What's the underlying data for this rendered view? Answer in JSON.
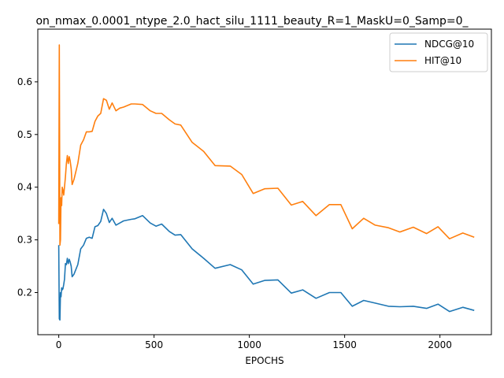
{
  "figure": {
    "title": "on_nmax_0.0001_ntype_2.0_hact_silu_1111_beauty_R=1_MaskU=0_Samp=0_"
  },
  "chart_data": {
    "type": "line",
    "title": "on_nmax_0.0001_ntype_2.0_hact_silu_1111_beauty_R=1_MaskU=0_Samp=0_",
    "xlabel": "EPOCHS",
    "ylabel": "",
    "xlim": [
      -110,
      2270
    ],
    "ylim": [
      0.12,
      0.7
    ],
    "xticks": [
      0,
      500,
      1000,
      1500,
      2000
    ],
    "yticks": [
      0.2,
      0.3,
      0.4,
      0.5,
      0.6
    ],
    "grid": false,
    "legend_position": "top-right",
    "series": [
      {
        "name": "NDCG@10",
        "color": "#1f77b4",
        "x": [
          0,
          3,
          6,
          9,
          12,
          15,
          18,
          22,
          26,
          30,
          35,
          40,
          45,
          50,
          55,
          60,
          65,
          70,
          80,
          100,
          115,
          130,
          145,
          160,
          175,
          190,
          205,
          220,
          235,
          250,
          265,
          280,
          300,
          320,
          340,
          380,
          400,
          440,
          480,
          510,
          540,
          580,
          610,
          640,
          700,
          760,
          820,
          900,
          960,
          1020,
          1080,
          1150,
          1220,
          1280,
          1350,
          1420,
          1480,
          1540,
          1600,
          1660,
          1730,
          1790,
          1860,
          1930,
          1990,
          2050,
          2120,
          2180
        ],
        "y": [
          0.29,
          0.15,
          0.148,
          0.2,
          0.192,
          0.209,
          0.205,
          0.207,
          0.215,
          0.225,
          0.255,
          0.253,
          0.265,
          0.255,
          0.263,
          0.258,
          0.25,
          0.23,
          0.235,
          0.253,
          0.283,
          0.29,
          0.303,
          0.305,
          0.303,
          0.325,
          0.327,
          0.335,
          0.358,
          0.35,
          0.333,
          0.341,
          0.328,
          0.332,
          0.336,
          0.339,
          0.34,
          0.346,
          0.332,
          0.326,
          0.33,
          0.316,
          0.309,
          0.31,
          0.283,
          0.265,
          0.246,
          0.253,
          0.243,
          0.216,
          0.223,
          0.224,
          0.199,
          0.205,
          0.189,
          0.2,
          0.2,
          0.174,
          0.185,
          0.18,
          0.174,
          0.173,
          0.174,
          0.17,
          0.178,
          0.164,
          0.172,
          0.166
        ]
      },
      {
        "name": "HIT@10",
        "color": "#ff7f0e",
        "x": [
          0,
          3,
          6,
          9,
          12,
          15,
          18,
          22,
          26,
          30,
          35,
          40,
          45,
          50,
          55,
          60,
          65,
          70,
          80,
          100,
          115,
          130,
          145,
          160,
          175,
          190,
          205,
          220,
          235,
          250,
          265,
          280,
          300,
          320,
          340,
          380,
          400,
          440,
          480,
          510,
          540,
          580,
          610,
          640,
          700,
          760,
          820,
          900,
          960,
          1020,
          1080,
          1150,
          1220,
          1280,
          1350,
          1420,
          1480,
          1540,
          1600,
          1660,
          1730,
          1790,
          1860,
          1930,
          1990,
          2050,
          2120,
          2180
        ],
        "y": [
          0.33,
          0.67,
          0.29,
          0.3,
          0.38,
          0.365,
          0.4,
          0.395,
          0.385,
          0.4,
          0.42,
          0.445,
          0.46,
          0.445,
          0.458,
          0.45,
          0.435,
          0.405,
          0.415,
          0.445,
          0.48,
          0.49,
          0.505,
          0.505,
          0.506,
          0.525,
          0.535,
          0.54,
          0.568,
          0.565,
          0.548,
          0.56,
          0.545,
          0.55,
          0.552,
          0.558,
          0.558,
          0.557,
          0.545,
          0.54,
          0.54,
          0.528,
          0.52,
          0.518,
          0.485,
          0.468,
          0.441,
          0.44,
          0.424,
          0.388,
          0.397,
          0.398,
          0.366,
          0.373,
          0.346,
          0.367,
          0.367,
          0.321,
          0.341,
          0.328,
          0.323,
          0.315,
          0.324,
          0.312,
          0.325,
          0.302,
          0.313,
          0.305
        ]
      }
    ]
  }
}
